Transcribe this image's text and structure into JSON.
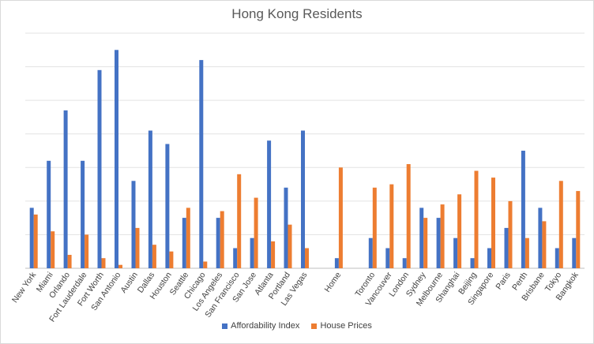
{
  "chart_data": {
    "type": "bar",
    "title": "Hong Kong Residents",
    "xlabel": "",
    "ylabel": "",
    "ylim": [
      0,
      70
    ],
    "grid": true,
    "legend": "bottom",
    "categories": [
      "New York",
      "Miami",
      "Orlando",
      "Fort Lauderdale",
      "Fort Worth",
      "San Antonio",
      "Austin",
      "Dallas",
      "Houston",
      "Seattle",
      "Chicago",
      "Los Angeles",
      "San Francisco",
      "San Jose",
      "Atlanta",
      "Portland",
      "Las Vegas",
      "",
      "Home",
      "",
      "Toronto",
      "Vancouver",
      "London",
      "Sydney",
      "Melbourne",
      "Shanghai",
      "Beijing",
      "Singapore",
      "Paris",
      "Perth",
      "Brisbane",
      "Tokyo",
      "Bangkok"
    ],
    "series": [
      {
        "name": "Affordability Index",
        "color": "#4472C4",
        "values": [
          18,
          32,
          47,
          32,
          59,
          65,
          26,
          41,
          37,
          15,
          62,
          15,
          6,
          9,
          38,
          24,
          41,
          null,
          3,
          null,
          9,
          6,
          3,
          18,
          15,
          9,
          3,
          6,
          12,
          35,
          18,
          6,
          9
        ]
      },
      {
        "name": "House Prices",
        "color": "#ED7D31",
        "values": [
          16,
          11,
          4,
          10,
          3,
          1,
          12,
          7,
          5,
          18,
          2,
          17,
          28,
          21,
          8,
          13,
          6,
          null,
          30,
          null,
          24,
          25,
          31,
          15,
          19,
          22,
          29,
          27,
          20,
          9,
          14,
          26,
          23
        ]
      }
    ]
  }
}
